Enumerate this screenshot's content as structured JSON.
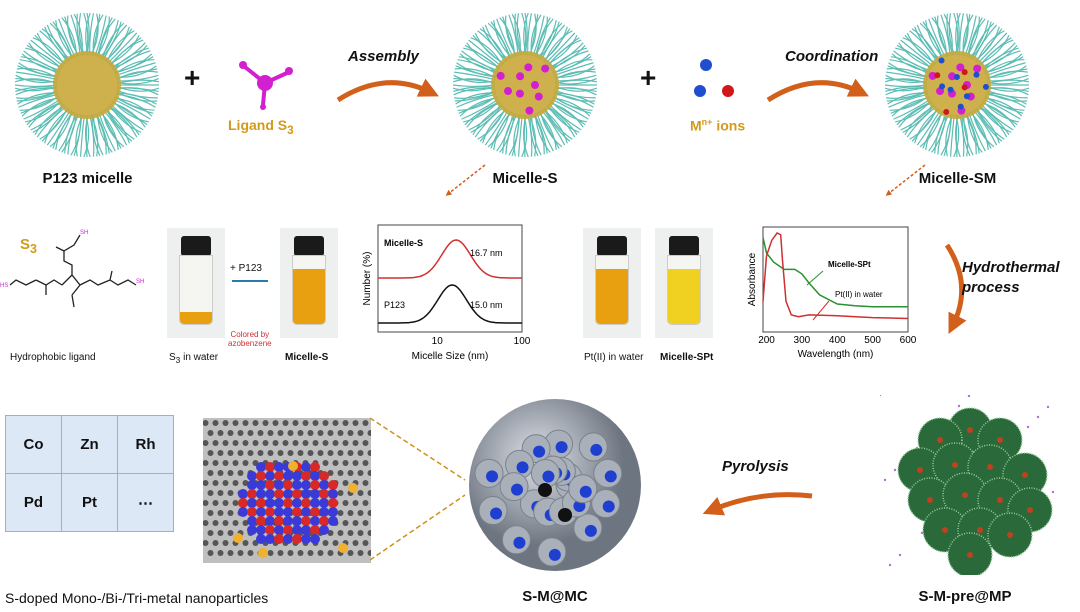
{
  "top_row": {
    "p123_label": "P123 micelle",
    "plus": "+",
    "ligand_label": "Ligand S",
    "ligand_sub": "3",
    "assembly": "Assembly",
    "micelle_s_label": "Micelle-S",
    "ions_label": "M",
    "ions_sup": "n+",
    "ions_suffix": " ions",
    "coordination": "Coordination",
    "micelle_sm_label": "Micelle-SM"
  },
  "middle_row": {
    "s3_label": "S",
    "s3_sub": "3",
    "sh": "SH",
    "hs": "HS",
    "ligand_caption": "Hydrophobic ligand",
    "plus_p123": "+ P123",
    "vial1_caption": "S",
    "vial1_sub": "3",
    "vial1_suffix": " in water",
    "vial2_caption": "Micelle-S",
    "colored_by": "Colored by",
    "azobenzene": "azobenzene",
    "vial3_caption": "Pt(II) in water",
    "vial4_caption": "Micelle-SPt",
    "hydrothermal_1": "Hydrothermal",
    "hydrothermal_2": "process"
  },
  "bottom_row": {
    "metals": [
      [
        "Co",
        "Zn",
        "Rh"
      ],
      [
        "Pd",
        "Pt",
        "⋯"
      ]
    ],
    "nanoparticle_caption": "S-doped Mono-/Bi-/Tri-metal nanoparticles",
    "smmc_label": "S-M@MC",
    "pyrolysis": "Pyrolysis",
    "smpre_label": "S-M-pre@MP"
  },
  "colors": {
    "arrow": "#d2601a",
    "micelle_shell": "#5cbdb4",
    "micelle_core": "#c9a83a",
    "ligand": "#d21fd0",
    "ion_blue": "#1f4fd0",
    "ion_red": "#d01818",
    "liquid_orange": "#e8a010",
    "liquid_yellow": "#f0d020"
  },
  "chart_data": [
    {
      "type": "line",
      "xlabel": "Micelle Size (nm)",
      "ylabel": "Number (%)",
      "xscale": "log",
      "xlim": [
        2,
        100
      ],
      "xticks": [
        "10",
        "100"
      ],
      "series": [
        {
          "name": "Micelle-S",
          "annotation": "16.7 nm",
          "peak": 16.7,
          "color": "#d03030"
        },
        {
          "name": "P123",
          "annotation": "15.0 nm",
          "peak": 15.0,
          "color": "#111111"
        }
      ]
    },
    {
      "type": "line",
      "xlabel": "Wavelength (nm)",
      "ylabel": "Absorbance",
      "xlim": [
        190,
        600
      ],
      "xticks": [
        "200",
        "300",
        "400",
        "500",
        "600"
      ],
      "series": [
        {
          "name": "Micelle-SPt",
          "color": "#2a9030",
          "x": [
            190,
            200,
            220,
            250,
            280,
            300,
            320,
            350,
            400,
            450,
            500,
            600
          ],
          "y": [
            0.95,
            0.78,
            0.68,
            0.6,
            0.6,
            0.55,
            0.45,
            0.32,
            0.22,
            0.2,
            0.19,
            0.19
          ]
        },
        {
          "name": "Pt(II) in water",
          "color": "#d03030",
          "x": [
            190,
            200,
            215,
            230,
            240,
            245,
            255,
            270,
            290,
            320,
            400,
            500,
            600
          ],
          "y": [
            0.25,
            0.75,
            0.92,
            1.0,
            0.98,
            0.7,
            0.25,
            0.1,
            0.08,
            0.1,
            0.09,
            0.07,
            0.06
          ]
        }
      ]
    }
  ]
}
